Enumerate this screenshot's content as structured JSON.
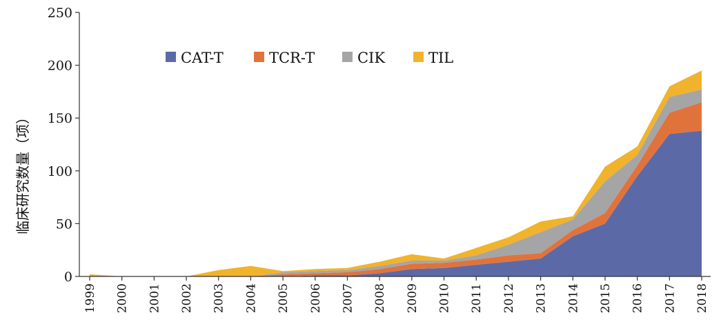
{
  "chart_data": {
    "type": "area",
    "stacked": true,
    "ylabel": "临床研究数量（项）",
    "xlabel": "",
    "ylim": [
      0,
      250
    ],
    "y_ticks": [
      0,
      50,
      100,
      150,
      200,
      250
    ],
    "grid": false,
    "legend_position": "top-left",
    "categories": [
      "1999",
      "2000",
      "2001",
      "2002",
      "2003",
      "2004",
      "2005",
      "2006",
      "2007",
      "2008",
      "2009",
      "2010",
      "2011",
      "2012",
      "2013",
      "2014",
      "2015",
      "2016",
      "2017",
      "2018"
    ],
    "series": [
      {
        "name": "CAT-T",
        "color": "#5b6aa7",
        "values": [
          0,
          0,
          0,
          0,
          0,
          0,
          0,
          1,
          1,
          3,
          7,
          8,
          11,
          14,
          17,
          38,
          50,
          95,
          135,
          138
        ]
      },
      {
        "name": "TCR-T",
        "color": "#e0733c",
        "values": [
          0,
          0,
          0,
          0,
          0,
          0,
          2,
          2,
          3,
          4,
          5,
          5,
          5,
          6,
          5,
          6,
          10,
          10,
          20,
          27
        ]
      },
      {
        "name": "CIK",
        "color": "#a5a5a5",
        "values": [
          0,
          0,
          0,
          0,
          0,
          0,
          2,
          2,
          2,
          3,
          3,
          2,
          4,
          10,
          20,
          10,
          30,
          10,
          15,
          12
        ]
      },
      {
        "name": "TIL",
        "color": "#f0b32b",
        "values": [
          2,
          0,
          0,
          0,
          6,
          10,
          1,
          2,
          2,
          4,
          6,
          2,
          7,
          7,
          10,
          3,
          14,
          8,
          10,
          18
        ]
      }
    ]
  }
}
